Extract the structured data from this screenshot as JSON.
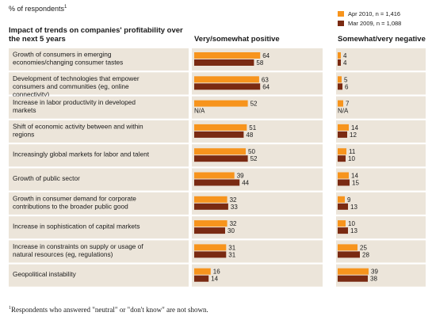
{
  "note": {
    "text": "% of respondents",
    "sup": "1"
  },
  "legend": [
    {
      "label": "Apr 2010, n = 1,416",
      "color": "#f7941d"
    },
    {
      "label": "Mar 2009, n = 1,088",
      "color": "#7a2a12"
    }
  ],
  "headers": {
    "row_label": "Impact of trends on companies' profitability over the next 5 years",
    "positive": "Very/somewhat positive",
    "negative": "Somewhat/very negative"
  },
  "footnote": {
    "sup": "1",
    "text": "Respondents who answered \"neutral\" or \"don't know\" are not shown."
  },
  "chart_data": {
    "type": "bar",
    "orientation": "horizontal",
    "categories": [
      "Growth of consumers in emerging economies/changing consumer tastes",
      "Development of technologies that empower consumers and communities (eg, online connectivity)",
      "Increase in labor productivity in developed markets",
      "Shift of economic activity between and within regions",
      "Increasingly global markets for labor and talent",
      "Growth of public sector",
      "Growth in consumer demand for corporate contributions to the broader public good",
      "Increase in sophistication of capital markets",
      "Increase in constraints on supply or usage of natural resources (eg, regulations)",
      "Geopolitical instability"
    ],
    "panels": [
      {
        "title": "Very/somewhat positive",
        "series": [
          {
            "name": "Apr 2010, n = 1,416",
            "color": "#f7941d",
            "values": [
              64,
              63,
              52,
              51,
              50,
              39,
              32,
              32,
              31,
              16
            ]
          },
          {
            "name": "Mar 2009, n = 1,088",
            "color": "#7a2a12",
            "values": [
              58,
              64,
              null,
              48,
              52,
              44,
              33,
              30,
              31,
              14
            ]
          }
        ]
      },
      {
        "title": "Somewhat/very negative",
        "series": [
          {
            "name": "Apr 2010, n = 1,416",
            "color": "#f7941d",
            "values": [
              4,
              5,
              7,
              14,
              11,
              14,
              9,
              10,
              25,
              39
            ]
          },
          {
            "name": "Mar 2009, n = 1,088",
            "color": "#7a2a12",
            "values": [
              4,
              6,
              null,
              12,
              10,
              15,
              13,
              13,
              28,
              38
            ]
          }
        ]
      }
    ],
    "missing_label": "N/A",
    "row_bg": "#ece5da"
  }
}
